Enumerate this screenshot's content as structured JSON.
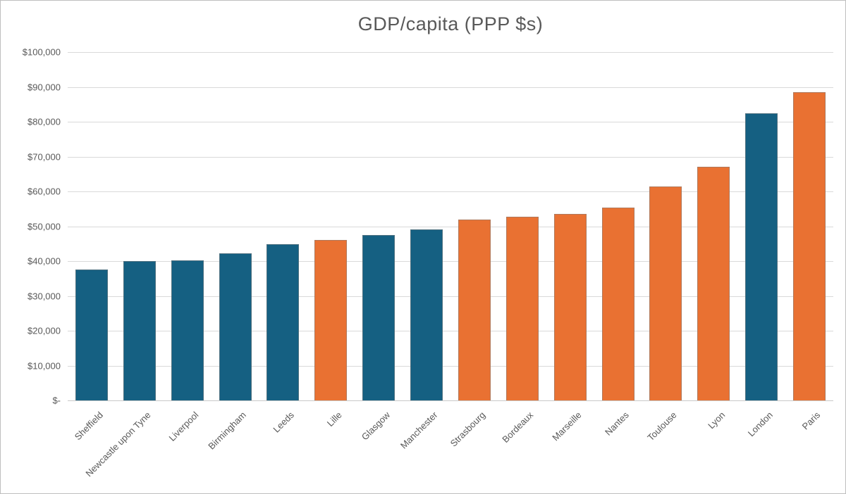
{
  "chart_data": {
    "type": "bar",
    "title": "GDP/capita (PPP $s)",
    "categories": [
      "Sheffield",
      "Newcastle upon Tyne",
      "Liverpool",
      "Birmingham",
      "Leeds",
      "Lille",
      "Glasgow",
      "Manchester",
      "Strasbourg",
      "Bordeaux",
      "Marseille",
      "Nantes",
      "Toulouse",
      "Lyon",
      "London",
      "Paris"
    ],
    "values": [
      37500,
      40100,
      40300,
      42200,
      44900,
      46000,
      47400,
      49100,
      51900,
      52800,
      53600,
      55300,
      61500,
      67000,
      82400,
      88400
    ],
    "bar_colors": [
      "#156082",
      "#156082",
      "#156082",
      "#156082",
      "#156082",
      "#E97132",
      "#156082",
      "#156082",
      "#E97132",
      "#E97132",
      "#E97132",
      "#E97132",
      "#E97132",
      "#E97132",
      "#156082",
      "#E97132"
    ],
    "xlabel": "",
    "ylabel": "",
    "ylim": [
      0,
      100000
    ],
    "yticks": [
      0,
      10000,
      20000,
      30000,
      40000,
      50000,
      60000,
      70000,
      80000,
      90000,
      100000
    ],
    "ytick_labels": [
      "$-",
      "$10,000",
      "$20,000",
      "$30,000",
      "$40,000",
      "$50,000",
      "$60,000",
      "$70,000",
      "$80,000",
      "$90,000",
      "$100,000"
    ],
    "grid": true,
    "legend_position": "none",
    "palette": {
      "uk_bar": "#156082",
      "france_bar": "#E97132",
      "gridline": "#d9d9d9",
      "text": "#595959"
    }
  }
}
